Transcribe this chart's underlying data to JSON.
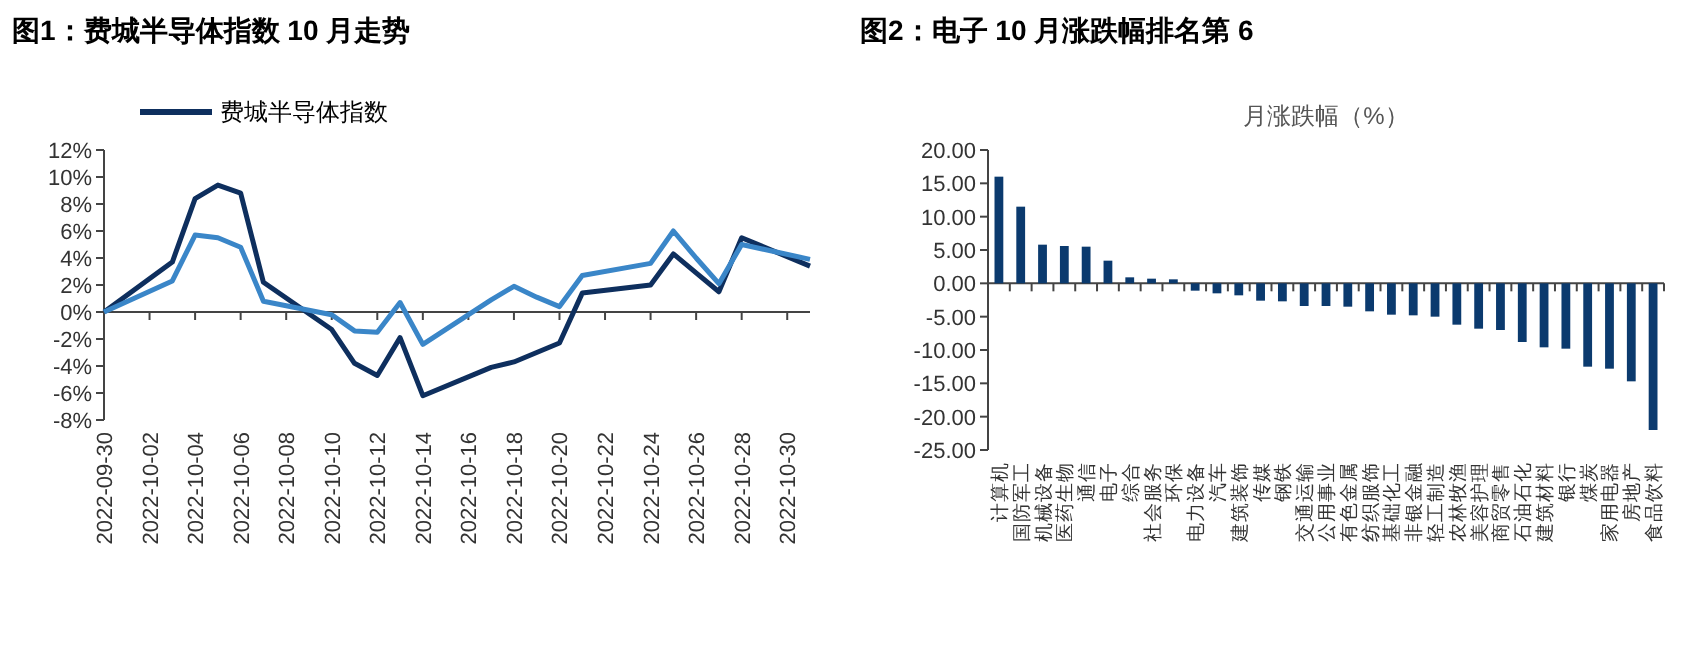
{
  "chart_data": [
    {
      "type": "line",
      "title": "图1：费城半导体指数 10 月走势",
      "legend": "top",
      "marker": "none",
      "line_style": "solid",
      "xlim": [
        "2022-09-30",
        "2022-10-31"
      ],
      "xticks": [
        {
          "value": "2022-09-30",
          "label": "2022-09-30"
        },
        {
          "value": "2022-10-02",
          "label": "2022-10-02"
        },
        {
          "value": "2022-10-04",
          "label": "2022-10-04"
        },
        {
          "value": "2022-10-06",
          "label": "2022-10-06"
        },
        {
          "value": "2022-10-08",
          "label": "2022-10-08"
        },
        {
          "value": "2022-10-10",
          "label": "2022-10-10"
        },
        {
          "value": "2022-10-12",
          "label": "2022-10-12"
        },
        {
          "value": "2022-10-14",
          "label": "2022-10-14"
        },
        {
          "value": "2022-10-16",
          "label": "2022-10-16"
        },
        {
          "value": "2022-10-18",
          "label": "2022-10-18"
        },
        {
          "value": "2022-10-20",
          "label": "2022-10-20"
        },
        {
          "value": "2022-10-22",
          "label": "2022-10-22"
        },
        {
          "value": "2022-10-24",
          "label": "2022-10-24"
        },
        {
          "value": "2022-10-26",
          "label": "2022-10-26"
        },
        {
          "value": "2022-10-28",
          "label": "2022-10-28"
        },
        {
          "value": "2022-10-30",
          "label": "2022-10-30"
        }
      ],
      "ylim": [
        -8,
        12
      ],
      "yticks": [
        {
          "value": -8,
          "label": "-8%"
        },
        {
          "value": -6,
          "label": "-6%"
        },
        {
          "value": -4,
          "label": "-4%"
        },
        {
          "value": -2,
          "label": "-2%"
        },
        {
          "value": 0,
          "label": "0%"
        },
        {
          "value": 2,
          "label": "2%"
        },
        {
          "value": 4,
          "label": "4%"
        },
        {
          "value": 6,
          "label": "6%"
        },
        {
          "value": 8,
          "label": "8%"
        },
        {
          "value": 10,
          "label": "10%"
        },
        {
          "value": 12,
          "label": "12%"
        }
      ],
      "x": [
        "2022-09-30",
        "2022-10-03",
        "2022-10-04",
        "2022-10-05",
        "2022-10-06",
        "2022-10-07",
        "2022-10-10",
        "2022-10-11",
        "2022-10-12",
        "2022-10-13",
        "2022-10-14",
        "2022-10-17",
        "2022-10-18",
        "2022-10-19",
        "2022-10-20",
        "2022-10-21",
        "2022-10-24",
        "2022-10-25",
        "2022-10-26",
        "2022-10-27",
        "2022-10-28",
        "2022-10-31"
      ],
      "series": [
        {
          "name": "费城半导体指数",
          "color": "#0e2f5e",
          "values": [
            0,
            3.7,
            8.4,
            9.4,
            8.8,
            2.2,
            -1.3,
            -3.8,
            -4.7,
            -1.9,
            -6.2,
            -4.1,
            -3.7,
            -3.0,
            -2.3,
            1.4,
            2.0,
            4.3,
            2.9,
            1.5,
            5.5,
            3.4
          ]
        },
        {
          "color": "#3a86c8",
          "values": [
            0,
            2.3,
            5.7,
            5.5,
            4.8,
            0.8,
            -0.2,
            -1.4,
            -1.5,
            0.7,
            -2.4,
            0.9,
            1.9,
            1.1,
            0.4,
            2.7,
            3.6,
            6.0,
            4.0,
            2.1,
            5.0,
            3.9
          ]
        }
      ]
    },
    {
      "type": "bar",
      "title": "图2：电子 10 月涨跌幅排名第 6",
      "subtitle": "月涨跌幅（%）",
      "categories": [
        "计算机",
        "国防军工",
        "机械设备",
        "医药生物",
        "通信",
        "电子",
        "综合",
        "社会服务",
        "环保",
        "电力设备",
        "汽车",
        "建筑装饰",
        "传媒",
        "钢铁",
        "交通运输",
        "公用事业",
        "有色金属",
        "纺织服饰",
        "基础化工",
        "非银金融",
        "轻工制造",
        "农林牧渔",
        "美容护理",
        "商贸零售",
        "石油石化",
        "建筑材料",
        "银行",
        "煤炭",
        "家用电器",
        "房地产",
        "食品饮料"
      ],
      "ylim": [
        -25,
        20
      ],
      "yticks": [
        {
          "value": -25,
          "label": "-25.00"
        },
        {
          "value": -20,
          "label": "-20.00"
        },
        {
          "value": -15,
          "label": "-15.00"
        },
        {
          "value": -10,
          "label": "-10.00"
        },
        {
          "value": -5,
          "label": "-5.00"
        },
        {
          "value": 0,
          "label": "0.00"
        },
        {
          "value": 5,
          "label": "5.00"
        },
        {
          "value": 10,
          "label": "10.00"
        },
        {
          "value": 15,
          "label": "15.00"
        },
        {
          "value": 20,
          "label": "20.00"
        }
      ],
      "series": [
        {
          "color": "#0b3a6e",
          "values": [
            16.0,
            11.5,
            5.8,
            5.6,
            5.5,
            3.4,
            0.9,
            0.7,
            0.6,
            -1.1,
            -1.5,
            -1.8,
            -2.6,
            -2.7,
            -3.4,
            -3.4,
            -3.5,
            -4.2,
            -4.7,
            -4.8,
            -5.0,
            -6.2,
            -6.8,
            -7.0,
            -8.8,
            -9.6,
            -9.8,
            -12.5,
            -12.8,
            -14.7,
            -22.0
          ]
        }
      ]
    }
  ]
}
